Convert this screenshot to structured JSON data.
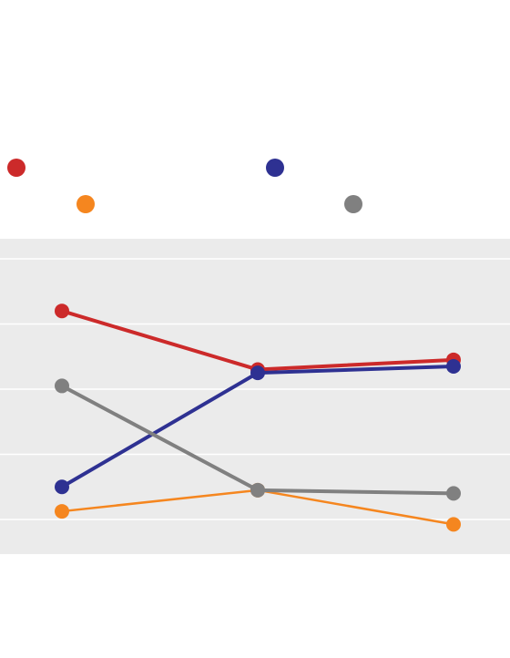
{
  "chart_data": {
    "type": "line",
    "title": "",
    "xlabel": "",
    "ylabel": "",
    "x": [
      1,
      2,
      3
    ],
    "ylim": [
      0,
      9
    ],
    "gridlines_y": [
      1,
      3,
      5,
      7,
      9
    ],
    "grid": true,
    "legend_position": "top",
    "plot_background": "#ebebeb",
    "series": [
      {
        "color": "#cc2a2a",
        "values": [
          7.4,
          5.6,
          5.9
        ]
      },
      {
        "color": "#2e3192",
        "values": [
          2.0,
          5.5,
          5.7
        ]
      },
      {
        "color": "#f5861f",
        "values": [
          1.25,
          1.9,
          0.85
        ],
        "thin": true
      },
      {
        "color": "#808080",
        "values": [
          5.1,
          1.9,
          1.8
        ]
      }
    ]
  }
}
